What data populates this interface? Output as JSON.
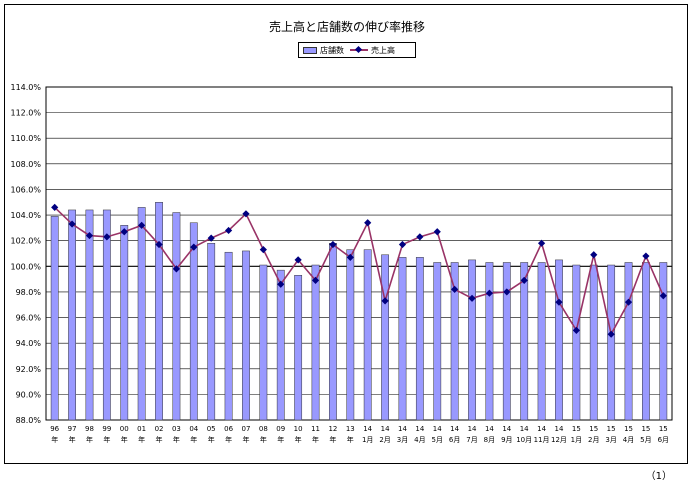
{
  "page_number": "（1）",
  "chart_data": {
    "type": "bar",
    "title": "売上高と店舗数の伸び率推移",
    "legend": [
      "店舗数",
      "売上高"
    ],
    "legend_position": "top-center",
    "grid": true,
    "ylim": [
      88.0,
      114.0
    ],
    "y_ticks": [
      "88.0%",
      "90.0%",
      "92.0%",
      "94.0%",
      "96.0%",
      "98.0%",
      "100.0%",
      "102.0%",
      "104.0%",
      "106.0%",
      "108.0%",
      "110.0%",
      "112.0%",
      "114.0%"
    ],
    "categories": [
      [
        "96",
        "年"
      ],
      [
        "97",
        "年"
      ],
      [
        "98",
        "年"
      ],
      [
        "99",
        "年"
      ],
      [
        "00",
        "年"
      ],
      [
        "01",
        "年"
      ],
      [
        "02",
        "年"
      ],
      [
        "03",
        "年"
      ],
      [
        "04",
        "年"
      ],
      [
        "05",
        "年"
      ],
      [
        "06",
        "年"
      ],
      [
        "07",
        "年"
      ],
      [
        "08",
        "年"
      ],
      [
        "09",
        "年"
      ],
      [
        "10",
        "年"
      ],
      [
        "11",
        "年"
      ],
      [
        "12",
        "年"
      ],
      [
        "13",
        "年"
      ],
      [
        "14",
        "1月"
      ],
      [
        "14",
        "2月"
      ],
      [
        "14",
        "3月"
      ],
      [
        "14",
        "4月"
      ],
      [
        "14",
        "5月"
      ],
      [
        "14",
        "6月"
      ],
      [
        "14",
        "7月"
      ],
      [
        "14",
        "8月"
      ],
      [
        "14",
        "9月"
      ],
      [
        "14",
        "10月"
      ],
      [
        "14",
        "11月"
      ],
      [
        "14",
        "12月"
      ],
      [
        "15",
        "1月"
      ],
      [
        "15",
        "2月"
      ],
      [
        "15",
        "3月"
      ],
      [
        "15",
        "4月"
      ],
      [
        "15",
        "5月"
      ],
      [
        "15",
        "6月"
      ]
    ],
    "series": [
      {
        "name": "店舗数",
        "type": "bar",
        "color": "#9999ff",
        "values": [
          103.9,
          104.4,
          104.4,
          104.4,
          103.2,
          104.6,
          105.0,
          104.2,
          103.4,
          101.8,
          101.1,
          101.2,
          100.1,
          99.7,
          99.3,
          100.1,
          101.8,
          101.3,
          101.3,
          100.9,
          100.7,
          100.7,
          100.3,
          100.3,
          100.5,
          100.3,
          100.3,
          100.3,
          100.3,
          100.5,
          100.1,
          100.1,
          100.1,
          100.3,
          100.3,
          100.3
        ]
      },
      {
        "name": "売上高",
        "type": "line",
        "color": "#993366",
        "marker_color": "#000080",
        "values": [
          104.6,
          103.3,
          102.4,
          102.3,
          102.7,
          103.2,
          101.7,
          99.8,
          101.5,
          102.2,
          102.8,
          104.1,
          101.3,
          98.6,
          100.5,
          98.9,
          101.7,
          100.7,
          103.4,
          97.3,
          101.7,
          102.3,
          102.7,
          98.2,
          97.5,
          97.9,
          98.0,
          98.9,
          101.8,
          97.2,
          95.0,
          100.9,
          94.7,
          97.2,
          100.8,
          97.7
        ]
      }
    ]
  }
}
